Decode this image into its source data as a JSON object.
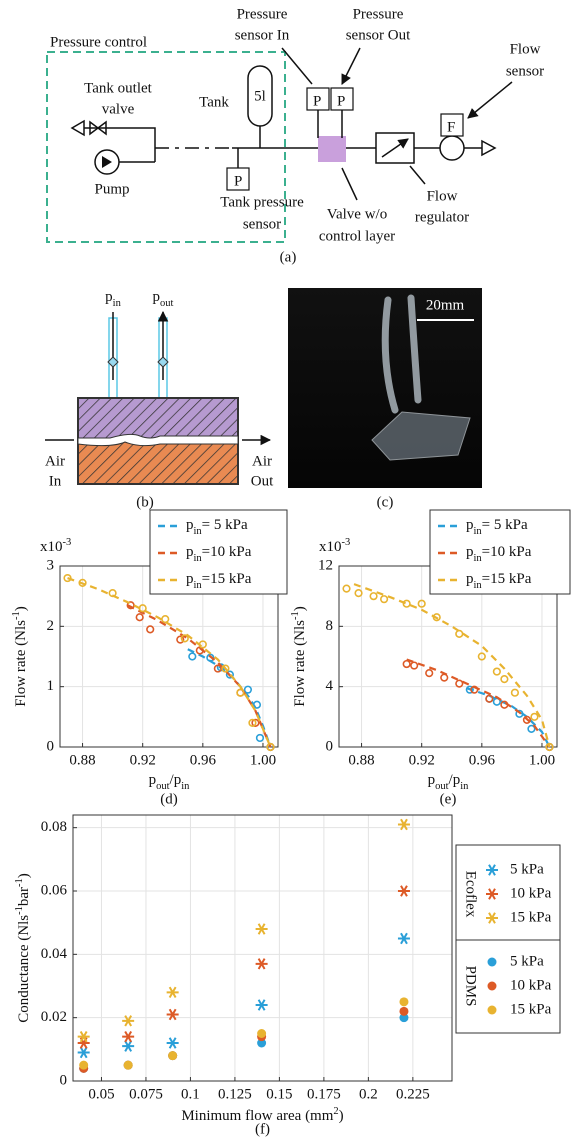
{
  "panel_a": {
    "group_label": "Pressure control",
    "pressure_sensor_in": [
      "Pressure",
      "sensor In"
    ],
    "pressure_sensor_out": [
      "Pressure",
      "sensor Out"
    ],
    "flow_sensor": [
      "Flow",
      "sensor"
    ],
    "tank_outlet_valve": [
      "Tank outlet",
      "valve"
    ],
    "tank": "Tank",
    "tank_volume": "5l",
    "pump": "Pump",
    "tank_pressure_sensor": [
      "Tank pressure",
      "sensor"
    ],
    "valve": [
      "Valve w/o",
      "control layer"
    ],
    "flow_regulator": [
      "Flow",
      "regulator"
    ],
    "sensor_symbol": "P",
    "flow_symbol": "F",
    "caption": "(a)"
  },
  "panel_b": {
    "p_in": "pin",
    "p_out": "pout",
    "air_in": [
      "Air",
      "In"
    ],
    "air_out": [
      "Air",
      "Out"
    ],
    "caption": "(b)"
  },
  "panel_c": {
    "scale_bar": "20mm",
    "caption": "(c)"
  },
  "chart_data": [
    {
      "type": "scatter",
      "caption": "(d)",
      "x_label": "pout/pin",
      "y_label": "Flow rate (Nls-1)",
      "y_multiplier": "x10-3",
      "xlim": [
        0.865,
        1.01
      ],
      "xticks": [
        0.88,
        0.92,
        0.96,
        {
          "value": 1,
          "label": "1.00"
        }
      ],
      "ylim": [
        0,
        3
      ],
      "yticks": [
        0,
        1,
        2,
        3
      ],
      "grid": true,
      "legend": "top-right",
      "series": [
        {
          "name": "pin= 5 kPa",
          "color": "#2a9fd8",
          "x": [
            0.953,
            0.965,
            0.972,
            0.978,
            0.99,
            0.996,
            0.998,
            1.005
          ],
          "values": [
            1.5,
            1.48,
            1.32,
            1.2,
            0.95,
            0.7,
            0.15,
            0
          ],
          "fit_x": [
            0.95,
            0.96,
            0.97,
            0.98,
            0.99,
            0.995,
            1.0,
            1.005
          ],
          "fit_values": [
            1.62,
            1.5,
            1.35,
            1.15,
            0.85,
            0.65,
            0.35,
            0
          ]
        },
        {
          "name": "pin=10 kPa",
          "color": "#dd5a26",
          "x": [
            0.912,
            0.918,
            0.925,
            0.945,
            0.958,
            0.97,
            0.985,
            0.995,
            1.005
          ],
          "values": [
            2.35,
            2.15,
            1.95,
            1.78,
            1.6,
            1.3,
            0.9,
            0.4,
            0
          ],
          "fit_x": [
            0.91,
            0.93,
            0.95,
            0.97,
            0.985,
            0.995,
            1.005
          ],
          "fit_values": [
            2.35,
            2.1,
            1.8,
            1.4,
            1.0,
            0.6,
            0
          ]
        },
        {
          "name": "pin=15 kPa",
          "color": "#e8b330",
          "x": [
            0.87,
            0.88,
            0.9,
            0.92,
            0.935,
            0.948,
            0.96,
            0.975,
            0.985,
            0.993,
            1.005
          ],
          "values": [
            2.8,
            2.72,
            2.55,
            2.3,
            2.12,
            1.8,
            1.7,
            1.3,
            0.9,
            0.4,
            0
          ],
          "fit_x": [
            0.87,
            0.89,
            0.91,
            0.93,
            0.95,
            0.97,
            0.985,
            0.995,
            1.005
          ],
          "fit_values": [
            2.8,
            2.62,
            2.4,
            2.15,
            1.85,
            1.45,
            1.0,
            0.6,
            0
          ]
        }
      ]
    },
    {
      "type": "scatter",
      "caption": "(e)",
      "x_label": "pout/pin",
      "y_label": "Flow rate (Nls-1)",
      "y_multiplier": "x10-3",
      "xlim": [
        0.865,
        1.01
      ],
      "xticks": [
        0.88,
        0.92,
        0.96,
        {
          "value": 1,
          "label": "1.00"
        }
      ],
      "ylim": [
        0,
        12
      ],
      "yticks": [
        0,
        4,
        8,
        12
      ],
      "grid": true,
      "legend": "top-right",
      "series": [
        {
          "name": "pin= 5 kPa",
          "color": "#2a9fd8",
          "x": [
            0.952,
            0.965,
            0.97,
            0.985,
            0.993,
            1.005
          ],
          "values": [
            3.8,
            3.2,
            3.0,
            2.2,
            1.2,
            0
          ],
          "fit_x": [
            0.95,
            0.965,
            0.98,
            0.99,
            1.0,
            1.005
          ],
          "fit_values": [
            3.9,
            3.4,
            2.7,
            2.0,
            1.0,
            0
          ]
        },
        {
          "name": "pin=10 kPa",
          "color": "#dd5a26",
          "x": [
            0.91,
            0.915,
            0.925,
            0.935,
            0.945,
            0.955,
            0.965,
            0.975,
            0.99,
            1.005
          ],
          "values": [
            5.5,
            5.4,
            4.9,
            4.6,
            4.2,
            3.8,
            3.2,
            2.8,
            1.8,
            0
          ],
          "fit_x": [
            0.91,
            0.93,
            0.95,
            0.97,
            0.985,
            0.995,
            1.005
          ],
          "fit_values": [
            5.8,
            5.1,
            4.2,
            3.3,
            2.3,
            1.4,
            0
          ]
        },
        {
          "name": "pin=15 kPa",
          "color": "#e8b330",
          "x": [
            0.87,
            0.878,
            0.888,
            0.895,
            0.91,
            0.92,
            0.93,
            0.945,
            0.96,
            0.97,
            0.975,
            0.982,
            0.995,
            1.005
          ],
          "values": [
            10.5,
            10.2,
            10,
            9.8,
            9.5,
            9.5,
            8.6,
            7.5,
            6,
            5,
            4.5,
            3.6,
            2,
            0
          ],
          "fit_x": [
            0.875,
            0.9,
            0.92,
            0.94,
            0.96,
            0.975,
            0.99,
            1.0,
            1.005
          ],
          "fit_values": [
            10.8,
            9.9,
            9.1,
            8.0,
            6.7,
            5.2,
            3.4,
            1.8,
            0
          ]
        }
      ]
    },
    {
      "type": "scatter",
      "caption": "(f)",
      "x_label": "Minimum flow area (mm2)",
      "y_label": "Conductance (Nls-1bar-1)",
      "xlim": [
        0.034,
        0.247
      ],
      "xticks": [
        0.05,
        0.075,
        0.1,
        0.125,
        0.15,
        0.175,
        0.2,
        0.225
      ],
      "ylim": [
        0,
        0.084
      ],
      "yticks": [
        0,
        0.02,
        0.04,
        0.06,
        0.08
      ],
      "grid": true,
      "legend": "right",
      "x": [
        0.04,
        0.065,
        0.09,
        0.14,
        0.22
      ],
      "groups": [
        {
          "label": "Ecoflex",
          "marker": "asterisk",
          "series": [
            {
              "name": "5 kPa",
              "color": "#2a9fd8",
              "values": [
                0.009,
                0.011,
                0.012,
                0.024,
                0.045
              ]
            },
            {
              "name": "10 kPa",
              "color": "#dd5a26",
              "values": [
                0.012,
                0.014,
                0.021,
                0.037,
                0.06
              ]
            },
            {
              "name": "15 kPa",
              "color": "#e8b330",
              "values": [
                0.014,
                0.019,
                0.028,
                0.048,
                0.081
              ]
            }
          ]
        },
        {
          "label": "PDMS",
          "marker": "dot",
          "series": [
            {
              "name": "5 kPa",
              "color": "#2a9fd8",
              "values": [
                0.004,
                0.005,
                0.008,
                0.012,
                0.02
              ]
            },
            {
              "name": "10 kPa",
              "color": "#dd5a26",
              "values": [
                0.004,
                0.005,
                0.008,
                0.014,
                0.022
              ]
            },
            {
              "name": "15 kPa",
              "color": "#e8b330",
              "values": [
                0.005,
                0.005,
                0.008,
                0.015,
                0.025
              ]
            }
          ]
        }
      ]
    }
  ]
}
